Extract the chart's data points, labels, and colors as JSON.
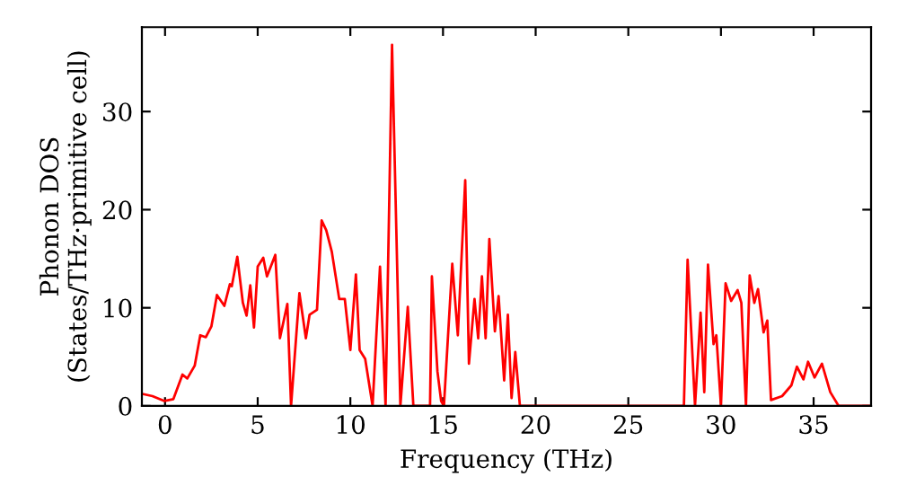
{
  "chart_data": {
    "type": "line",
    "xlabel": "Frequency (THz)",
    "ylabel": "Phonon DOS\n(States/THz·primitive cell)",
    "xlim": [
      -1.25,
      38.1
    ],
    "ylim": [
      0,
      38.6
    ],
    "xticks": [
      0,
      5,
      10,
      15,
      20,
      25,
      30,
      35
    ],
    "yticks": [
      0,
      10,
      20,
      30
    ],
    "grid": false,
    "legend": false,
    "marker": "none",
    "line_style": "solid",
    "series": [
      {
        "color": "#ff0000",
        "x": [
          -1.17,
          -0.68,
          -0.03,
          0.45,
          0.94,
          1.2,
          1.6,
          1.9,
          2.2,
          2.5,
          2.8,
          3.2,
          3.5,
          3.6,
          3.9,
          4.2,
          4.4,
          4.6,
          4.8,
          5.0,
          5.3,
          5.5,
          5.95,
          6.2,
          6.6,
          6.8,
          7.25,
          7.6,
          7.8,
          8.2,
          8.45,
          8.7,
          9.0,
          9.4,
          9.7,
          10.0,
          10.3,
          10.5,
          10.8,
          11.2,
          11.6,
          11.9,
          12.25,
          12.7,
          13.1,
          13.4,
          14.3,
          14.4,
          14.7,
          14.9,
          15.05,
          15.5,
          15.8,
          16.2,
          16.4,
          16.7,
          16.9,
          17.1,
          17.3,
          17.5,
          17.8,
          18.0,
          18.3,
          18.5,
          18.7,
          18.9,
          19.15,
          28.0,
          28.2,
          28.6,
          28.9,
          29.1,
          29.3,
          29.6,
          29.75,
          30.0,
          30.25,
          30.55,
          30.9,
          31.1,
          31.35,
          31.55,
          31.8,
          32.0,
          32.3,
          32.5,
          32.7,
          33.3,
          33.8,
          34.1,
          34.45,
          34.7,
          35.05,
          35.45,
          35.9,
          36.35,
          38.0
        ],
        "values": [
          1.2,
          1.0,
          0.5,
          0.7,
          3.2,
          2.8,
          4.1,
          7.2,
          7.0,
          8.1,
          11.3,
          10.2,
          12.4,
          12.2,
          15.2,
          10.5,
          9.2,
          12.3,
          8.0,
          14.2,
          15.1,
          13.2,
          15.4,
          6.9,
          10.4,
          0,
          11.5,
          6.9,
          9.3,
          9.8,
          18.9,
          17.9,
          15.7,
          10.9,
          10.9,
          5.7,
          13.4,
          5.7,
          4.8,
          0,
          14.2,
          0,
          36.8,
          0,
          10.1,
          0,
          0,
          13.2,
          3.5,
          0.5,
          0,
          14.5,
          7.2,
          23.0,
          4.3,
          10.9,
          6.9,
          13.2,
          6.9,
          17.0,
          7.6,
          11.2,
          2.6,
          9.3,
          0.8,
          5.5,
          0,
          0,
          14.9,
          0,
          9.5,
          1.4,
          14.4,
          6.3,
          7.2,
          0,
          12.5,
          10.7,
          11.8,
          10.5,
          0,
          13.3,
          10.5,
          11.9,
          7.5,
          8.7,
          0.6,
          1.0,
          2.1,
          4.0,
          2.7,
          4.5,
          2.9,
          4.3,
          1.4,
          0,
          0
        ]
      }
    ]
  }
}
